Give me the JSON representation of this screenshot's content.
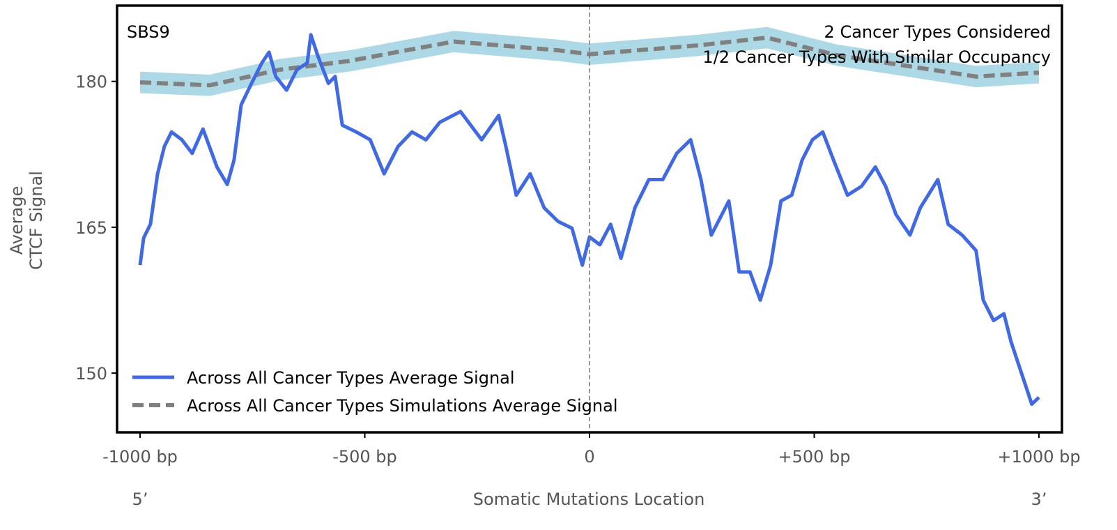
{
  "chart_data": {
    "type": "line",
    "title": "SBS9",
    "annotations": [
      "2 Cancer Types Considered",
      "1/2 Cancer Types With Similar Occupancy"
    ],
    "xlabel": "Somatic Mutations Location",
    "xlabel_left_end": "5’",
    "xlabel_right_end": "3’",
    "ylabel": [
      "Average",
      "CTCF Signal"
    ],
    "xlim": [
      -1000,
      1000
    ],
    "ylim": [
      143.9,
      187.8
    ],
    "x_ticks": [
      {
        "value": -1000,
        "label": "-1000 bp"
      },
      {
        "value": -500,
        "label": "-500 bp"
      },
      {
        "value": 0,
        "label": "0"
      },
      {
        "value": 500,
        "label": "+500 bp"
      },
      {
        "value": 1000,
        "label": "+1000 bp"
      }
    ],
    "y_ticks": [
      {
        "value": 180,
        "label": "180"
      },
      {
        "value": 165,
        "label": "165"
      },
      {
        "value": 150,
        "label": "150"
      }
    ],
    "grid": false,
    "vertical_reference_line": 0,
    "legend_position": "bottom-left",
    "series": [
      {
        "name": "Across All Cancer Types Average Signal",
        "color": "#4169e1",
        "style": "solid",
        "x": [
          -1000,
          -992,
          -977,
          -961,
          -946,
          -930,
          -907,
          -884,
          -860,
          -829,
          -806,
          -791,
          -775,
          -752,
          -729,
          -713,
          -698,
          -674,
          -651,
          -628,
          -620,
          -605,
          -581,
          -566,
          -550,
          -519,
          -488,
          -457,
          -426,
          -395,
          -364,
          -333,
          -287,
          -240,
          -202,
          -186,
          -163,
          -132,
          -101,
          -70,
          -39,
          -16,
          0,
          23,
          47,
          70,
          101,
          132,
          163,
          194,
          225,
          248,
          271,
          310,
          333,
          357,
          380,
          403,
          426,
          450,
          473,
          496,
          519,
          543,
          574,
          605,
          636,
          659,
          682,
          713,
          736,
          775,
          798,
          829,
          860,
          876,
          899,
          922,
          938,
          969,
          984,
          1000
        ],
        "y": [
          161.1,
          163.9,
          165.3,
          170.5,
          173.3,
          174.8,
          174.0,
          172.6,
          175.1,
          171.2,
          169.4,
          171.9,
          177.6,
          179.8,
          181.9,
          183.0,
          180.5,
          179.1,
          181.2,
          181.9,
          184.8,
          182.7,
          179.8,
          180.5,
          175.5,
          174.8,
          174.0,
          170.5,
          173.3,
          174.8,
          174.0,
          175.8,
          176.9,
          174.0,
          176.5,
          173.3,
          168.3,
          170.5,
          167.0,
          165.6,
          164.9,
          161.1,
          164.0,
          163.2,
          165.3,
          161.8,
          167.0,
          169.9,
          169.9,
          172.6,
          174.0,
          169.9,
          164.2,
          167.7,
          160.4,
          160.4,
          157.5,
          161.1,
          167.7,
          168.3,
          171.9,
          174.0,
          174.8,
          171.9,
          168.3,
          169.2,
          171.2,
          169.2,
          166.3,
          164.2,
          167.0,
          169.9,
          165.3,
          164.2,
          162.6,
          157.5,
          155.4,
          156.1,
          153.2,
          148.9,
          146.8,
          147.5
        ]
      },
      {
        "name": "Across All Cancer Types Simulations Average Signal",
        "color": "#808080",
        "style": "dashed",
        "band_color": "#add8e6",
        "band_halfwidth": 1.1,
        "x": [
          -1000,
          -845,
          -690,
          -535,
          -302,
          -70,
          0,
          240,
          395,
          550,
          705,
          860,
          1000
        ],
        "y": [
          179.9,
          179.6,
          181.2,
          182.1,
          184.1,
          183.2,
          182.8,
          183.7,
          184.5,
          182.7,
          181.6,
          180.5,
          180.9
        ]
      }
    ]
  }
}
